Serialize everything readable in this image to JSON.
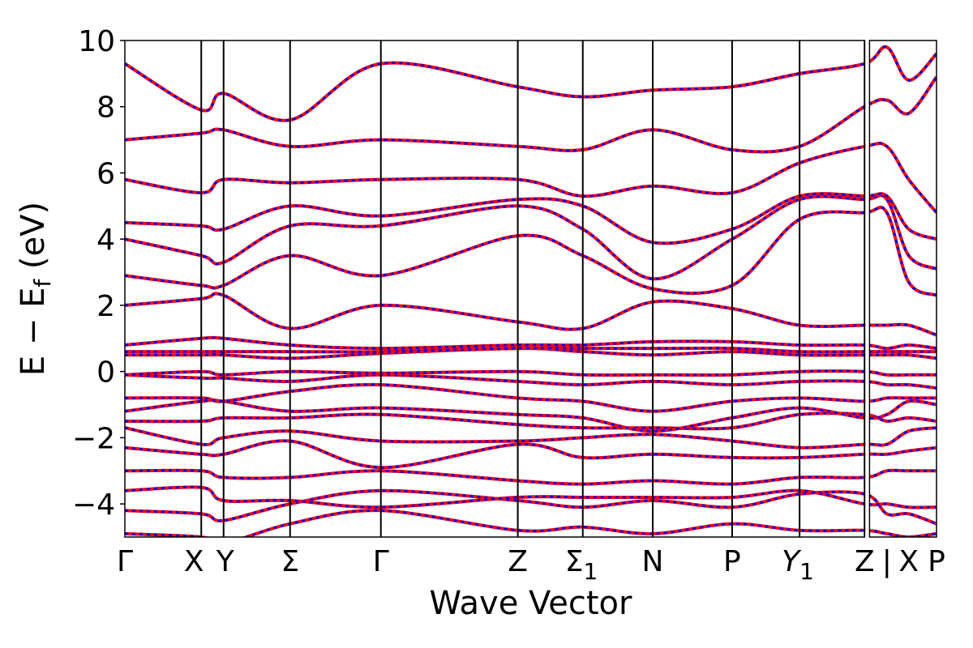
{
  "chart_data": {
    "type": "line",
    "xlabel": "Wave Vector",
    "ylabel": "E − E_f (eV)",
    "ylim": [
      -5,
      10
    ],
    "yticks": [
      10,
      8,
      6,
      4,
      2,
      0,
      -2,
      -4
    ],
    "ytick_labels": [
      "10",
      "8",
      "6",
      "4",
      "2",
      "0",
      "−2",
      "−4"
    ],
    "kpath": [
      {
        "label": "Γ",
        "x": 0.0
      },
      {
        "label": "X",
        "x": 0.154
      },
      {
        "label": "Y",
        "x": 0.199
      },
      {
        "label": "Σ",
        "x": 0.333
      },
      {
        "label": "Γ",
        "x": 0.516
      },
      {
        "label": "Z",
        "x": 0.792
      },
      {
        "label": "Σ",
        "sub": "1",
        "x": 0.923
      },
      {
        "label": "N",
        "x": 1.064
      },
      {
        "label": "P",
        "x": 1.224
      },
      {
        "label": "Y",
        "sub": "1",
        "italic": true,
        "x": 1.36
      },
      {
        "label": "Z",
        "x": 1.491
      },
      {
        "label": "|",
        "x": 1.536
      },
      {
        "label": "X",
        "x": 1.58
      },
      {
        "label": "P",
        "x": 1.636
      }
    ],
    "kpath_vertical_lines": [
      0.154,
      0.199,
      0.333,
      0.516,
      0.792,
      0.923,
      1.064,
      1.224,
      1.36,
      1.491
    ],
    "x_gap": [
      1.491,
      1.501
    ],
    "xlim": [
      0.0,
      1.636
    ],
    "series": [
      {
        "color": "#ff0000",
        "linestyle": "solid"
      },
      {
        "color": "#0000ff",
        "linestyle": "dashed"
      }
    ],
    "bands": [
      [
        -4.9,
        -5.0,
        -5.2,
        -4.6,
        -4.2,
        -4.8,
        -4.7,
        -4.9,
        -4.6,
        -4.8,
        -4.8,
        -4.9,
        -5.0,
        -4.9
      ],
      [
        -4.2,
        -4.3,
        -4.5,
        -4.0,
        -3.6,
        -3.9,
        -4.1,
        -3.9,
        -4.1,
        -3.7,
        -3.7,
        -4.3,
        -4.3,
        -4.6
      ],
      [
        -3.6,
        -3.5,
        -3.9,
        -3.9,
        -4.1,
        -3.8,
        -3.8,
        -3.8,
        -3.8,
        -3.6,
        -4.0,
        -4.0,
        -4.1,
        -4.1
      ],
      [
        -3.0,
        -3.0,
        -3.2,
        -3.2,
        -3.0,
        -3.3,
        -3.4,
        -3.3,
        -3.4,
        -3.2,
        -3.2,
        -3.0,
        -3.0,
        -3.0
      ],
      [
        -2.3,
        -2.5,
        -2.5,
        -2.1,
        -2.9,
        -2.2,
        -2.6,
        -2.5,
        -2.6,
        -2.6,
        -2.5,
        -2.5,
        -2.4,
        -2.3
      ],
      [
        -1.7,
        -2.2,
        -2.0,
        -1.8,
        -2.1,
        -2.1,
        -2.0,
        -1.9,
        -2.1,
        -2.3,
        -2.2,
        -2.2,
        -1.8,
        -1.7
      ],
      [
        -1.5,
        -1.5,
        -1.4,
        -1.4,
        -1.3,
        -1.6,
        -1.7,
        -1.7,
        -1.7,
        -1.3,
        -1.3,
        -1.5,
        -1.4,
        -1.5
      ],
      [
        -1.2,
        -0.9,
        -0.9,
        -1.2,
        -1.1,
        -1.3,
        -1.4,
        -1.8,
        -1.4,
        -1.1,
        -1.4,
        -1.3,
        -0.9,
        -1.0
      ],
      [
        -0.8,
        -0.8,
        -0.9,
        -0.6,
        -0.4,
        -0.8,
        -0.9,
        -1.2,
        -0.9,
        -0.8,
        -0.9,
        -0.8,
        -0.8,
        -0.8
      ],
      [
        -0.1,
        -0.2,
        -0.2,
        -0.3,
        -0.1,
        -0.3,
        -0.4,
        -0.3,
        -0.4,
        -0.3,
        -0.3,
        -0.4,
        -0.4,
        -0.5
      ],
      [
        -0.1,
        0.0,
        -0.1,
        0.0,
        -0.05,
        0.0,
        -0.1,
        -0.1,
        -0.1,
        0.0,
        0.0,
        -0.1,
        -0.1,
        -0.1
      ],
      [
        0.5,
        0.5,
        0.5,
        0.4,
        0.55,
        0.7,
        0.6,
        0.5,
        0.6,
        0.5,
        0.5,
        0.5,
        0.5,
        0.4
      ],
      [
        0.6,
        0.6,
        0.6,
        0.6,
        0.6,
        0.7,
        0.7,
        0.7,
        0.7,
        0.6,
        0.6,
        0.6,
        0.6,
        0.6
      ],
      [
        0.8,
        1.0,
        1.0,
        0.8,
        0.7,
        0.8,
        0.8,
        0.9,
        0.9,
        0.8,
        0.8,
        0.7,
        0.8,
        0.7
      ],
      [
        2.0,
        2.2,
        2.3,
        1.3,
        2.0,
        1.5,
        1.3,
        2.1,
        1.9,
        1.4,
        1.4,
        1.4,
        1.4,
        1.1
      ],
      [
        2.9,
        2.6,
        2.6,
        3.5,
        2.9,
        4.1,
        3.5,
        2.5,
        2.6,
        4.6,
        4.8,
        4.8,
        2.7,
        2.3
      ],
      [
        4.0,
        3.5,
        3.3,
        4.4,
        4.4,
        5.0,
        4.3,
        2.8,
        4.0,
        5.2,
        5.2,
        5.2,
        3.5,
        3.1
      ],
      [
        4.5,
        4.4,
        4.3,
        5.0,
        4.7,
        5.2,
        5.0,
        3.9,
        4.3,
        5.3,
        5.3,
        5.3,
        4.3,
        4.0
      ],
      [
        5.8,
        5.4,
        5.8,
        5.7,
        5.8,
        5.8,
        5.3,
        5.6,
        5.4,
        6.3,
        6.8,
        6.8,
        5.8,
        4.8
      ],
      [
        7.0,
        7.2,
        7.3,
        6.8,
        7.0,
        6.8,
        6.7,
        7.3,
        6.7,
        6.8,
        8.0,
        8.2,
        7.8,
        8.9
      ],
      [
        9.3,
        7.9,
        8.4,
        7.6,
        9.3,
        8.6,
        8.3,
        8.5,
        8.6,
        9.0,
        9.3,
        9.8,
        8.8,
        9.6
      ]
    ]
  }
}
